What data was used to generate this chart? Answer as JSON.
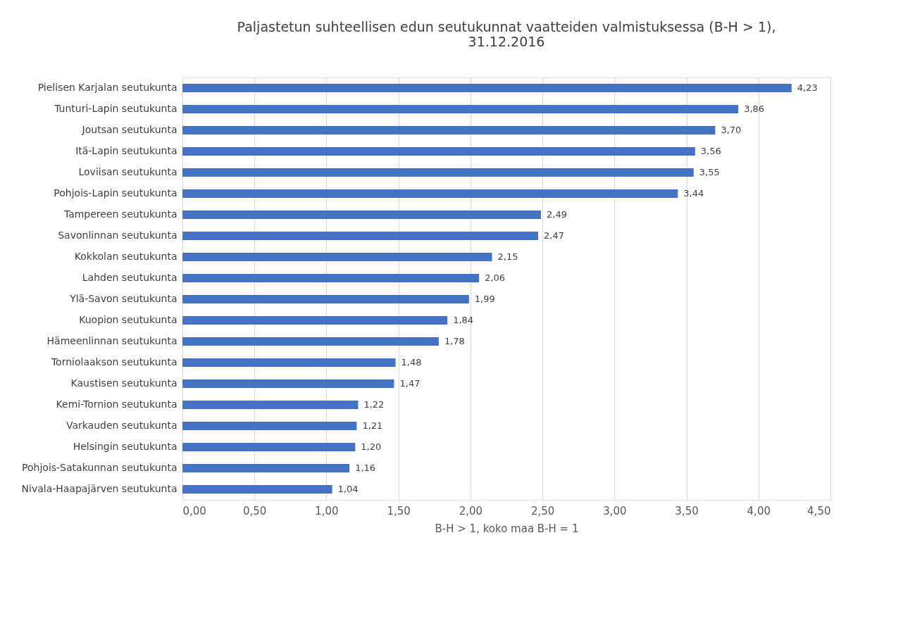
{
  "chart_data": {
    "type": "bar",
    "orientation": "horizontal",
    "title": "Paljastetun suhteellisen edun seutukunnat vaatteiden valmistuksessa (B-H > 1), 31.12.2016",
    "xlabel": "B-H > 1, koko maa B-H = 1",
    "categories": [
      "Pielisen Karjalan seutukunta",
      "Tunturi-Lapin seutukunta",
      "Joutsan seutukunta",
      "Itä-Lapin seutukunta",
      "Loviisan seutukunta",
      "Pohjois-Lapin seutukunta",
      "Tampereen seutukunta",
      "Savonlinnan seutukunta",
      "Kokkolan seutukunta",
      "Lahden seutukunta",
      "Ylä-Savon seutukunta",
      "Kuopion seutukunta",
      "Hämeenlinnan seutukunta",
      "Torniolaakson seutukunta",
      "Kaustisen seutukunta",
      "Kemi-Tornion seutukunta",
      "Varkauden seutukunta",
      "Helsingin seutukunta",
      "Pohjois-Satakunnan seutukunta",
      "Nivala-Haapajärven seutukunta"
    ],
    "values": [
      4.23,
      3.86,
      3.7,
      3.56,
      3.55,
      3.44,
      2.49,
      2.47,
      2.15,
      2.06,
      1.99,
      1.84,
      1.78,
      1.48,
      1.47,
      1.22,
      1.21,
      1.2,
      1.16,
      1.04
    ],
    "value_labels": [
      "4,23",
      "3,86",
      "3,70",
      "3,56",
      "3,55",
      "3,44",
      "2,49",
      "2,47",
      "2,15",
      "2,06",
      "1,99",
      "1,84",
      "1,78",
      "1,48",
      "1,47",
      "1,22",
      "1,21",
      "1,20",
      "1,16",
      "1,04"
    ],
    "color": "#4472c4",
    "xlim": [
      0,
      4.5
    ],
    "xticks": [
      {
        "value": 0,
        "label": "0,00"
      },
      {
        "value": 0.5,
        "label": "0,50"
      },
      {
        "value": 1,
        "label": "1,00"
      },
      {
        "value": 1.5,
        "label": "1,50"
      },
      {
        "value": 2,
        "label": "2,00"
      },
      {
        "value": 2.5,
        "label": "2,50"
      },
      {
        "value": 3,
        "label": "3,00"
      },
      {
        "value": 3.5,
        "label": "3,50"
      },
      {
        "value": 4,
        "label": "4,00"
      },
      {
        "value": 4.5,
        "label": "4,50"
      }
    ],
    "grid": "x"
  }
}
